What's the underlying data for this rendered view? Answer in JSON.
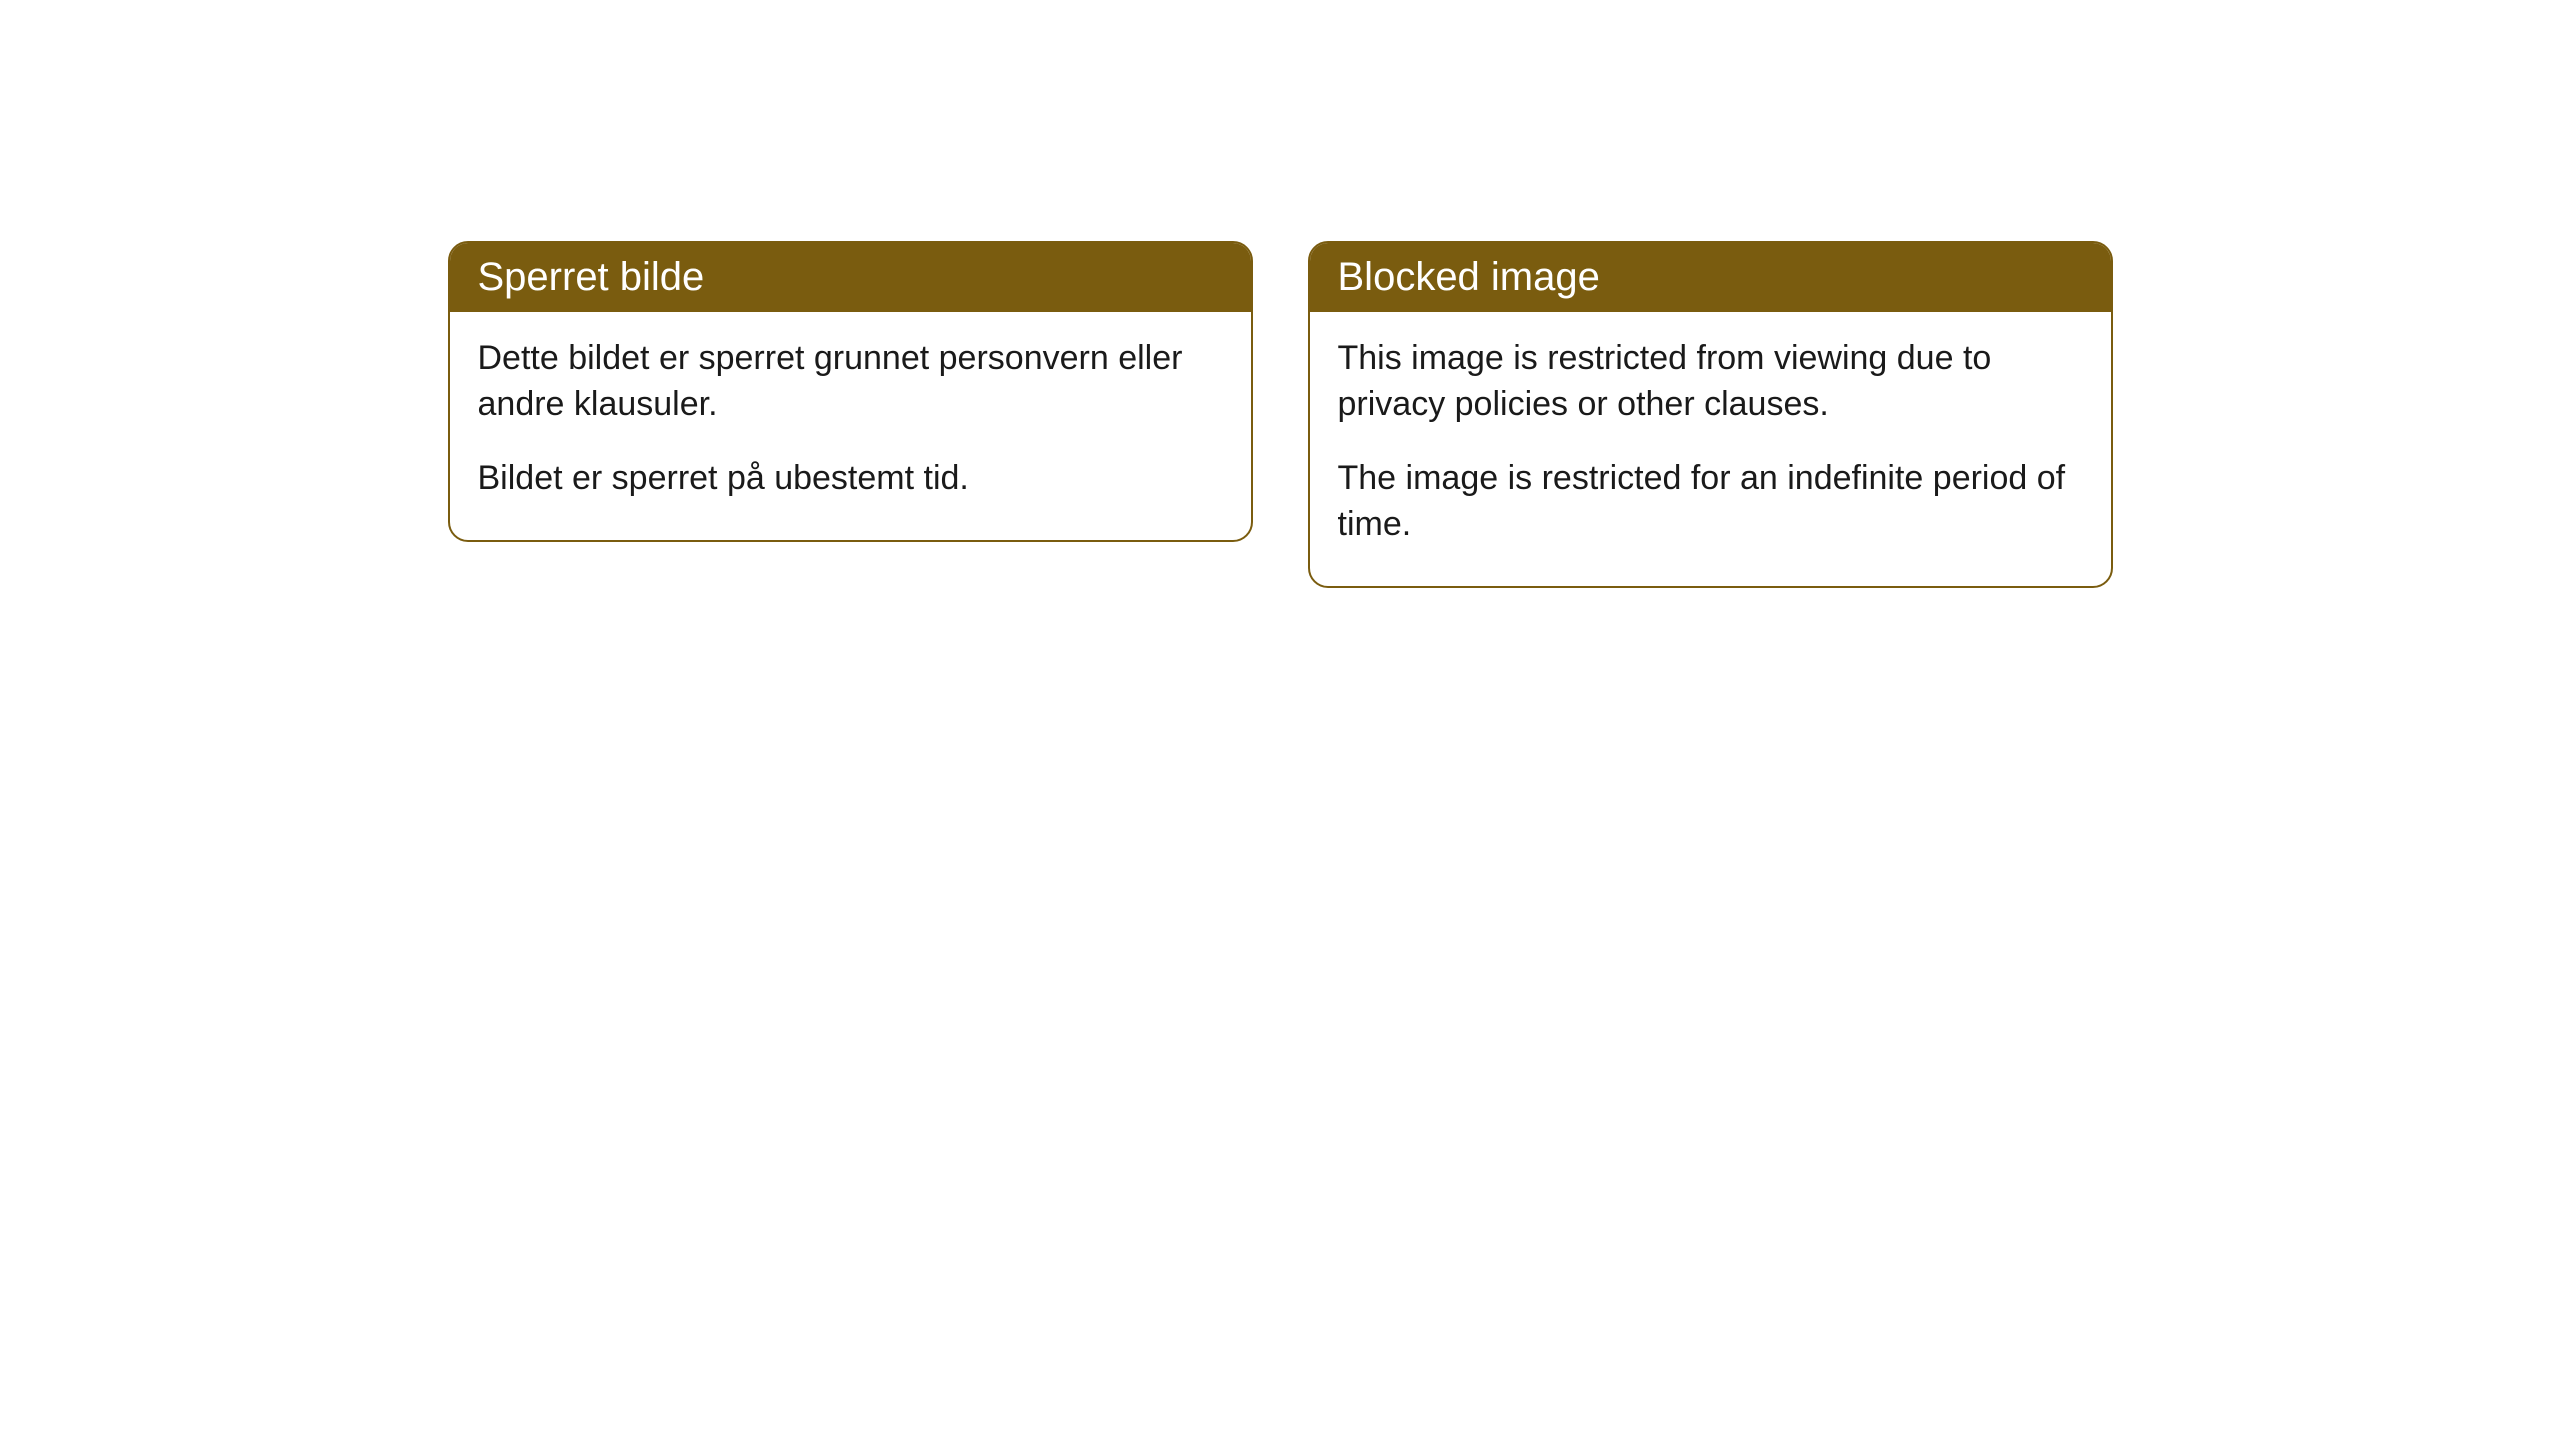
{
  "cards": [
    {
      "title": "Sperret bilde",
      "paragraph1": "Dette bildet er sperret grunnet personvern eller andre klausuler.",
      "paragraph2": "Bildet er sperret på ubestemt tid."
    },
    {
      "title": "Blocked image",
      "paragraph1": "This image is restricted from viewing due to privacy policies or other clauses.",
      "paragraph2": "The image is restricted for an indefinite period of time."
    }
  ],
  "styling": {
    "card_border_color": "#7a5c0f",
    "card_header_bg": "#7a5c0f",
    "card_header_text_color": "#ffffff",
    "card_body_bg": "#ffffff",
    "card_body_text_color": "#1a1a1a",
    "border_radius": 20,
    "title_fontsize": 40,
    "body_fontsize": 34
  }
}
